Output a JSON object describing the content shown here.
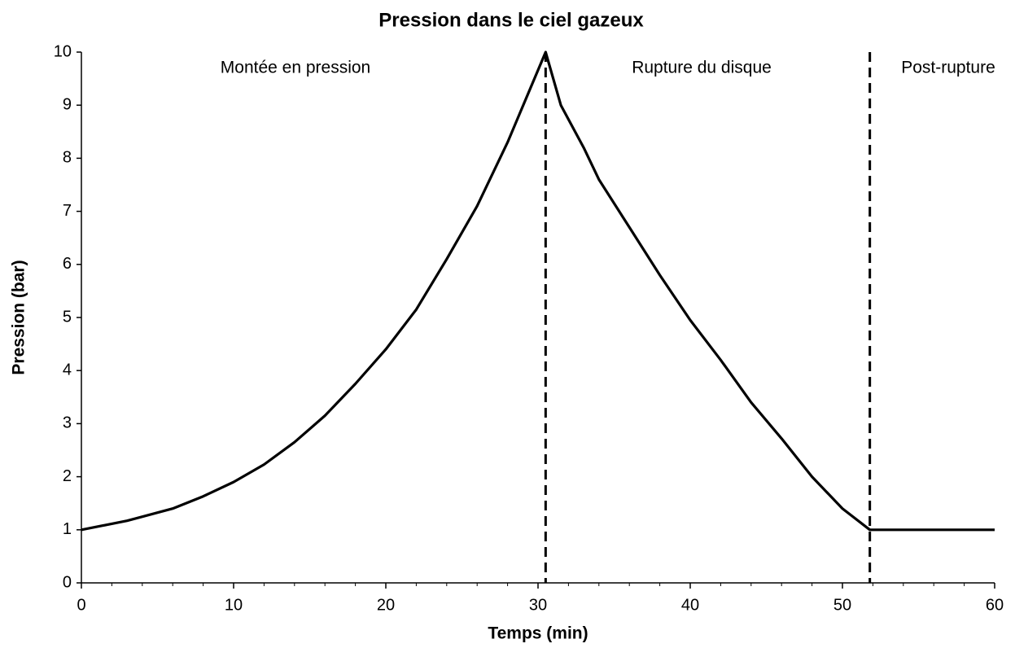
{
  "chart_data": {
    "type": "line",
    "title": "Pression dans le ciel gazeux",
    "x_label": "Temps (min)",
    "y_label": "Pression (bar)",
    "series": [
      {
        "name": "Pression",
        "color": "#000000",
        "x": [
          0,
          3,
          6,
          8,
          10,
          12,
          14,
          16,
          18,
          20,
          22,
          24,
          26,
          28,
          30.5,
          31.5,
          33,
          34,
          36,
          38,
          40,
          42,
          44,
          46,
          48,
          50,
          51.8,
          60
        ],
        "values": [
          1.0,
          1.17,
          1.4,
          1.63,
          1.9,
          2.23,
          2.65,
          3.15,
          3.75,
          4.4,
          5.15,
          6.1,
          7.1,
          8.3,
          10.0,
          9.0,
          8.2,
          7.6,
          6.7,
          5.8,
          4.95,
          4.2,
          3.4,
          2.72,
          2.0,
          1.4,
          1.0,
          1.0
        ]
      }
    ],
    "vlines": [
      30.5,
      51.8
    ],
    "annotations": [
      "Montée en pression",
      "Rupture du disque",
      "Post-rupture"
    ],
    "xlim": [
      0,
      60
    ],
    "ylim": [
      0,
      10
    ],
    "xticks": [
      0,
      10,
      20,
      30,
      40,
      50,
      60
    ],
    "x_minor_ticks": [
      2,
      4,
      6,
      8,
      12,
      14,
      16,
      18,
      22,
      24,
      26,
      28,
      32,
      34,
      36,
      38,
      42,
      44,
      46,
      48,
      52,
      54,
      56,
      58
    ],
    "yticks": [
      0,
      1,
      2,
      3,
      4,
      5,
      6,
      7,
      8,
      9,
      10
    ],
    "grid": false
  }
}
